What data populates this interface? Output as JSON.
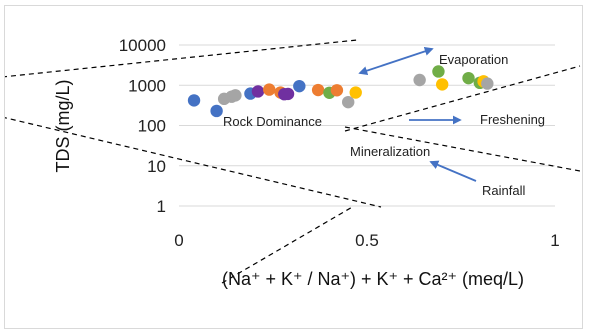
{
  "chart_data": {
    "type": "scatter",
    "title": "",
    "xlabel": "(Na⁺ + K⁺ / Na⁺) + K⁺ + Ca²⁺ (meq/L)",
    "ylabel": "TDS (mg/L)",
    "xlim": [
      0,
      1
    ],
    "ylim": [
      1,
      10000
    ],
    "yscale": "log",
    "grid": true,
    "legend": "none",
    "x_ticks": [
      "0",
      "0.5",
      "1"
    ],
    "y_ticks": [
      "1",
      "10",
      "100",
      "1000",
      "10000"
    ],
    "points": [
      {
        "x": 0.04,
        "y": 420,
        "color": "#4472c4"
      },
      {
        "x": 0.1,
        "y": 230,
        "color": "#4472c4"
      },
      {
        "x": 0.12,
        "y": 460,
        "color": "#a5a5a5"
      },
      {
        "x": 0.14,
        "y": 520,
        "color": "#a5a5a5"
      },
      {
        "x": 0.15,
        "y": 560,
        "color": "#a5a5a5"
      },
      {
        "x": 0.19,
        "y": 620,
        "color": "#4472c4"
      },
      {
        "x": 0.21,
        "y": 700,
        "color": "#7030a0"
      },
      {
        "x": 0.24,
        "y": 780,
        "color": "#ed7d31"
      },
      {
        "x": 0.27,
        "y": 660,
        "color": "#ed7d31"
      },
      {
        "x": 0.28,
        "y": 600,
        "color": "#7030a0"
      },
      {
        "x": 0.29,
        "y": 610,
        "color": "#7030a0"
      },
      {
        "x": 0.32,
        "y": 950,
        "color": "#4472c4"
      },
      {
        "x": 0.37,
        "y": 760,
        "color": "#ed7d31"
      },
      {
        "x": 0.4,
        "y": 650,
        "color": "#70ad47"
      },
      {
        "x": 0.42,
        "y": 750,
        "color": "#ed7d31"
      },
      {
        "x": 0.45,
        "y": 380,
        "color": "#a5a5a5"
      },
      {
        "x": 0.47,
        "y": 660,
        "color": "#ffc000"
      },
      {
        "x": 0.64,
        "y": 1350,
        "color": "#a5a5a5"
      },
      {
        "x": 0.69,
        "y": 2200,
        "color": "#70ad47"
      },
      {
        "x": 0.7,
        "y": 1050,
        "color": "#ffc000"
      },
      {
        "x": 0.77,
        "y": 1500,
        "color": "#70ad47"
      },
      {
        "x": 0.8,
        "y": 1150,
        "color": "#70ad47"
      },
      {
        "x": 0.81,
        "y": 1250,
        "color": "#ffc000"
      },
      {
        "x": 0.82,
        "y": 1100,
        "color": "#a5a5a5"
      }
    ],
    "annotations": [
      {
        "text": "Evaporation"
      },
      {
        "text": "Rock Dominance"
      },
      {
        "text": "Freshening"
      },
      {
        "text": "Mineralization"
      },
      {
        "text": "Rainfall"
      }
    ],
    "colors": {
      "arrow": "#4472c4",
      "gridline": "#d9d9d9",
      "boundary": "#000000"
    }
  }
}
